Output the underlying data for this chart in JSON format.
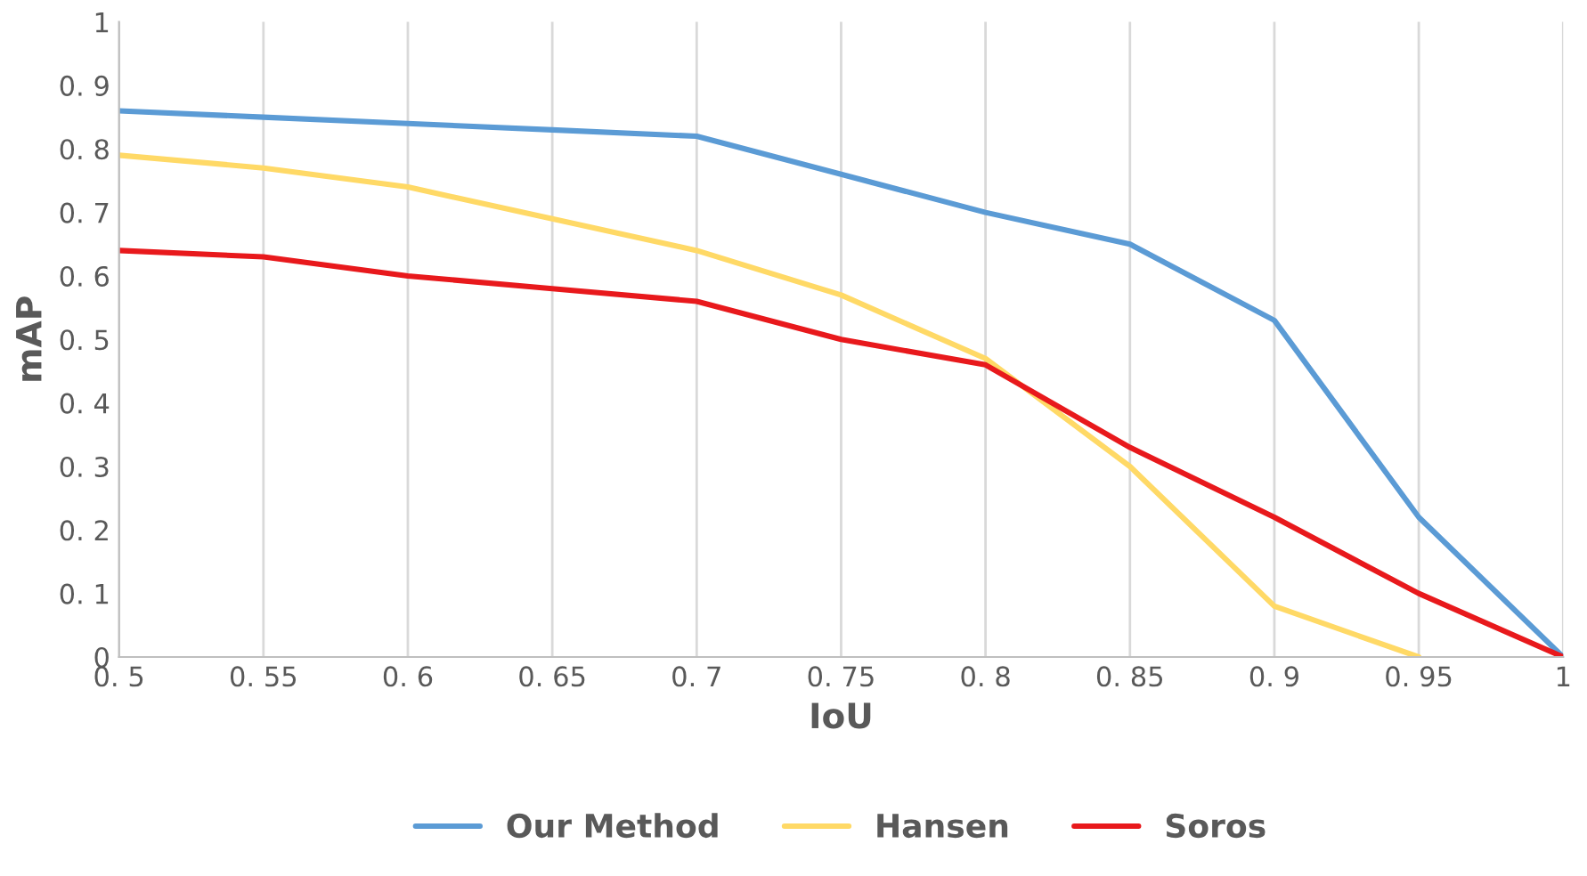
{
  "chart_data": {
    "type": "line",
    "xlabel": "IoU",
    "ylabel": "mAP",
    "categories": [
      "0. 5",
      "0. 55",
      "0. 6",
      "0. 65",
      "0. 7",
      "0. 75",
      "0. 8",
      "0. 85",
      "0. 9",
      "0. 95",
      "1"
    ],
    "series": [
      {
        "name": "Our Method",
        "color": "#5b9bd5",
        "values": [
          0.86,
          0.85,
          0.84,
          0.83,
          0.82,
          0.76,
          0.7,
          0.65,
          0.53,
          0.22,
          0.0
        ]
      },
      {
        "name": "Hansen",
        "color": "#ffd966",
        "values": [
          0.79,
          0.77,
          0.74,
          0.69,
          0.64,
          0.57,
          0.47,
          0.3,
          0.08,
          0.0,
          null
        ]
      },
      {
        "name": "Soros",
        "color": "#e8191c",
        "values": [
          0.64,
          0.63,
          0.6,
          0.58,
          0.56,
          0.5,
          0.46,
          0.33,
          0.22,
          0.1,
          0.0
        ]
      }
    ],
    "ylim": [
      0,
      1
    ],
    "yticks": [
      0,
      {
        "value": 0.1,
        "label": "0. 1"
      },
      {
        "value": 0.2,
        "label": "0. 2"
      },
      {
        "value": 0.3,
        "label": "0. 3"
      },
      {
        "value": 0.4,
        "label": "0. 4"
      },
      {
        "value": 0.5,
        "label": "0. 5"
      },
      {
        "value": 0.6,
        "label": "0. 6"
      },
      {
        "value": 0.7,
        "label": "0. 7"
      },
      {
        "value": 0.8,
        "label": "0. 8"
      },
      {
        "value": 0.9,
        "label": "0. 9"
      },
      1
    ],
    "grid": "x",
    "legend": "bottom",
    "marker": "none",
    "line_style": "solid"
  }
}
